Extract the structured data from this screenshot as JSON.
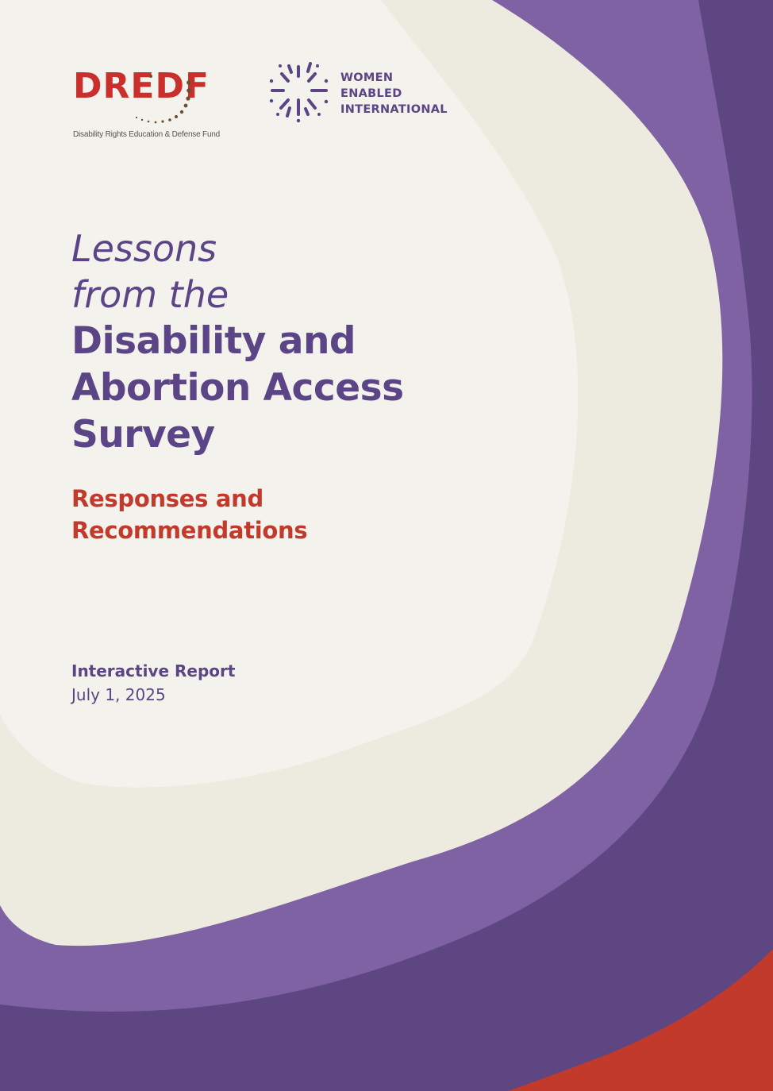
{
  "colors": {
    "background_light": "#f4f2ec",
    "background_mid": "#edeae0",
    "purple_light": "#7f62a3",
    "purple_dark": "#5d4682",
    "accent_red": "#c13a2b",
    "title_purple": "#5b4586",
    "dredf_red": "#c9302c"
  },
  "logos": {
    "dredf": {
      "wordmark": "DREDF",
      "tagline": "Disability Rights Education & Defense Fund"
    },
    "wei": {
      "line1": "WOMEN",
      "line2": "ENABLED",
      "line3": "INTERNATIONAL",
      "icon": "sunburst-icon"
    }
  },
  "title": {
    "line1": "Lessons",
    "line2": "from the",
    "line3": "Disability and",
    "line4": "Abortion Access",
    "line5": "Survey"
  },
  "subtitle": {
    "line1": "Responses and",
    "line2": "Recommendations"
  },
  "meta": {
    "type": "Interactive Report",
    "date": "July 1, 2025"
  }
}
